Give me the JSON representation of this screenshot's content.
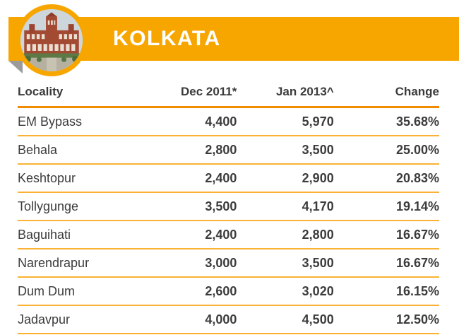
{
  "header": {
    "title": "KOLKATA",
    "badge_icon": "heritage-building-photo"
  },
  "colors": {
    "banner": "#F7A600",
    "header_underline": "#F08C00",
    "row_separator": "#F9B233",
    "text": "#3C3C3C"
  },
  "chart_data": {
    "type": "table",
    "title": "KOLKATA",
    "columns": [
      "Locality",
      "Dec 2011*",
      "Jan 2013^",
      "Change"
    ],
    "rows": [
      [
        "EM Bypass",
        "4,400",
        "5,970",
        "35.68%"
      ],
      [
        "Behala",
        "2,800",
        "3,500",
        "25.00%"
      ],
      [
        "Keshtopur",
        "2,400",
        "2,900",
        "20.83%"
      ],
      [
        "Tollygunge",
        "3,500",
        "4,170",
        "19.14%"
      ],
      [
        "Baguihati",
        "2,400",
        "2,800",
        "16.67%"
      ],
      [
        "Narendrapur",
        "3,000",
        "3,500",
        "16.67%"
      ],
      [
        "Dum Dum",
        "2,600",
        "3,020",
        "16.15%"
      ],
      [
        "Jadavpur",
        "4,000",
        "4,500",
        "12.50%"
      ]
    ]
  }
}
